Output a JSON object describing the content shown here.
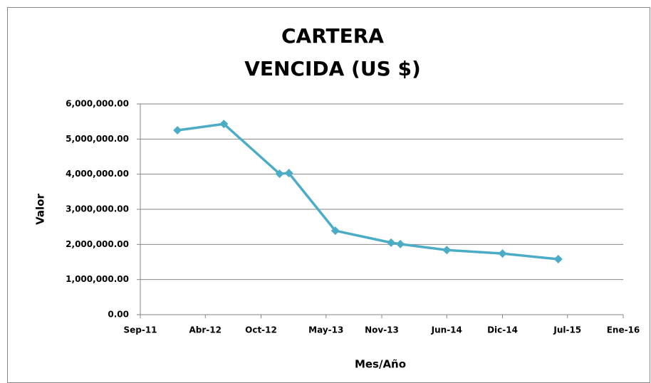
{
  "chart_data": {
    "type": "line",
    "title": [
      "CARTERA",
      "VENCIDA (US $)"
    ],
    "x_label": "Mes/Año",
    "y_label": "Valor",
    "x": [
      "2012-01",
      "2012-06",
      "2012-12",
      "2013-01",
      "2013-06",
      "2013-12",
      "2014-01",
      "2014-06",
      "2014-12",
      "2015-06"
    ],
    "series": [
      {
        "name": "Valor",
        "color": "#4bacc6",
        "values": [
          5250000,
          5430000,
          4010000,
          4030000,
          2390000,
          2050000,
          2010000,
          1840000,
          1740000,
          1580000
        ]
      }
    ],
    "xlim": [
      "2011-09",
      "2016-01"
    ],
    "xticks": [
      {
        "value": "2011-09",
        "label": "Sep-11"
      },
      {
        "value": "2012-04",
        "label": "Abr-12"
      },
      {
        "value": "2012-10",
        "label": "Oct-12"
      },
      {
        "value": "2013-05",
        "label": "May-13"
      },
      {
        "value": "2013-11",
        "label": "Nov-13"
      },
      {
        "value": "2014-06",
        "label": "Jun-14"
      },
      {
        "value": "2014-12",
        "label": "Dic-14"
      },
      {
        "value": "2015-07",
        "label": "Jul-15"
      },
      {
        "value": "2016-01",
        "label": "Ene-16"
      }
    ],
    "ylim": [
      0,
      6000000
    ],
    "yticks": [
      {
        "value": 0,
        "label": "0.00"
      },
      {
        "value": 1000000,
        "label": "1,000,000.00"
      },
      {
        "value": 2000000,
        "label": "2,000,000.00"
      },
      {
        "value": 3000000,
        "label": "3,000,000.00"
      },
      {
        "value": 4000000,
        "label": "4,000,000.00"
      },
      {
        "value": 5000000,
        "label": "5,000,000.00"
      },
      {
        "value": 6000000,
        "label": "6,000,000.00"
      }
    ],
    "grid": true
  }
}
